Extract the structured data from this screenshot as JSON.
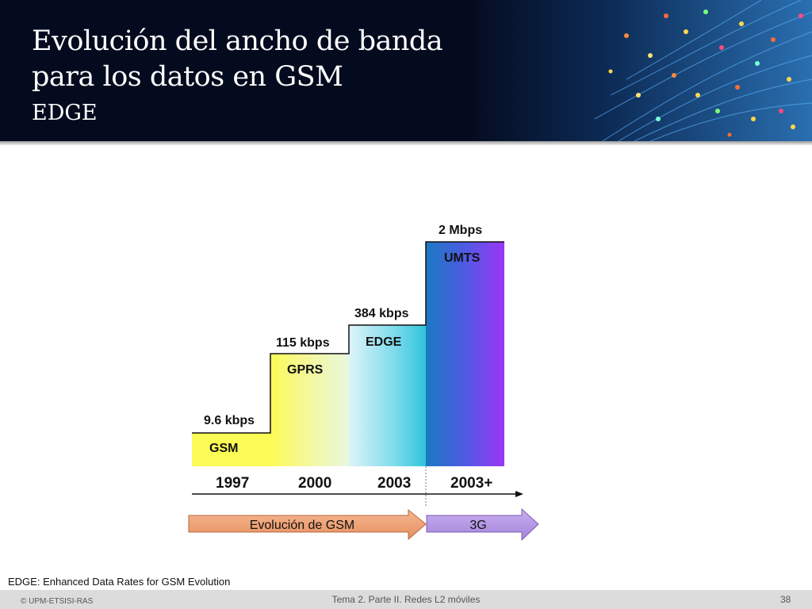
{
  "header": {
    "title_line1": "Evolución del ancho de banda",
    "title_line2": "para los datos en GSM",
    "subtitle": "EDGE",
    "background_color": "#050b1e"
  },
  "diagram": {
    "steps": [
      {
        "technology": "GSM",
        "rate": "9.6 kbps",
        "year": "1997",
        "color": "#fbfb55"
      },
      {
        "technology": "GPRS",
        "rate": "115 kbps",
        "year": "2000",
        "color": "#e8f8c8"
      },
      {
        "technology": "EDGE",
        "rate": "384 kbps",
        "year": "2003",
        "color": "#2fc4dc"
      },
      {
        "technology": "UMTS",
        "rate": "2 Mbps",
        "year": "2003+",
        "color": "#8a3cf2"
      }
    ],
    "arrows": [
      {
        "label": "Evolución de GSM",
        "color": "#f2a57a"
      },
      {
        "label": "3G",
        "color": "#b99ae6"
      }
    ]
  },
  "footnote": "EDGE: Enhanced Data Rates for GSM Evolution",
  "footer": {
    "copyright": "© UPM-ETSISI-RAS",
    "course": "Tema 2. Parte II. Redes L2 móviles",
    "page_number": "38"
  }
}
